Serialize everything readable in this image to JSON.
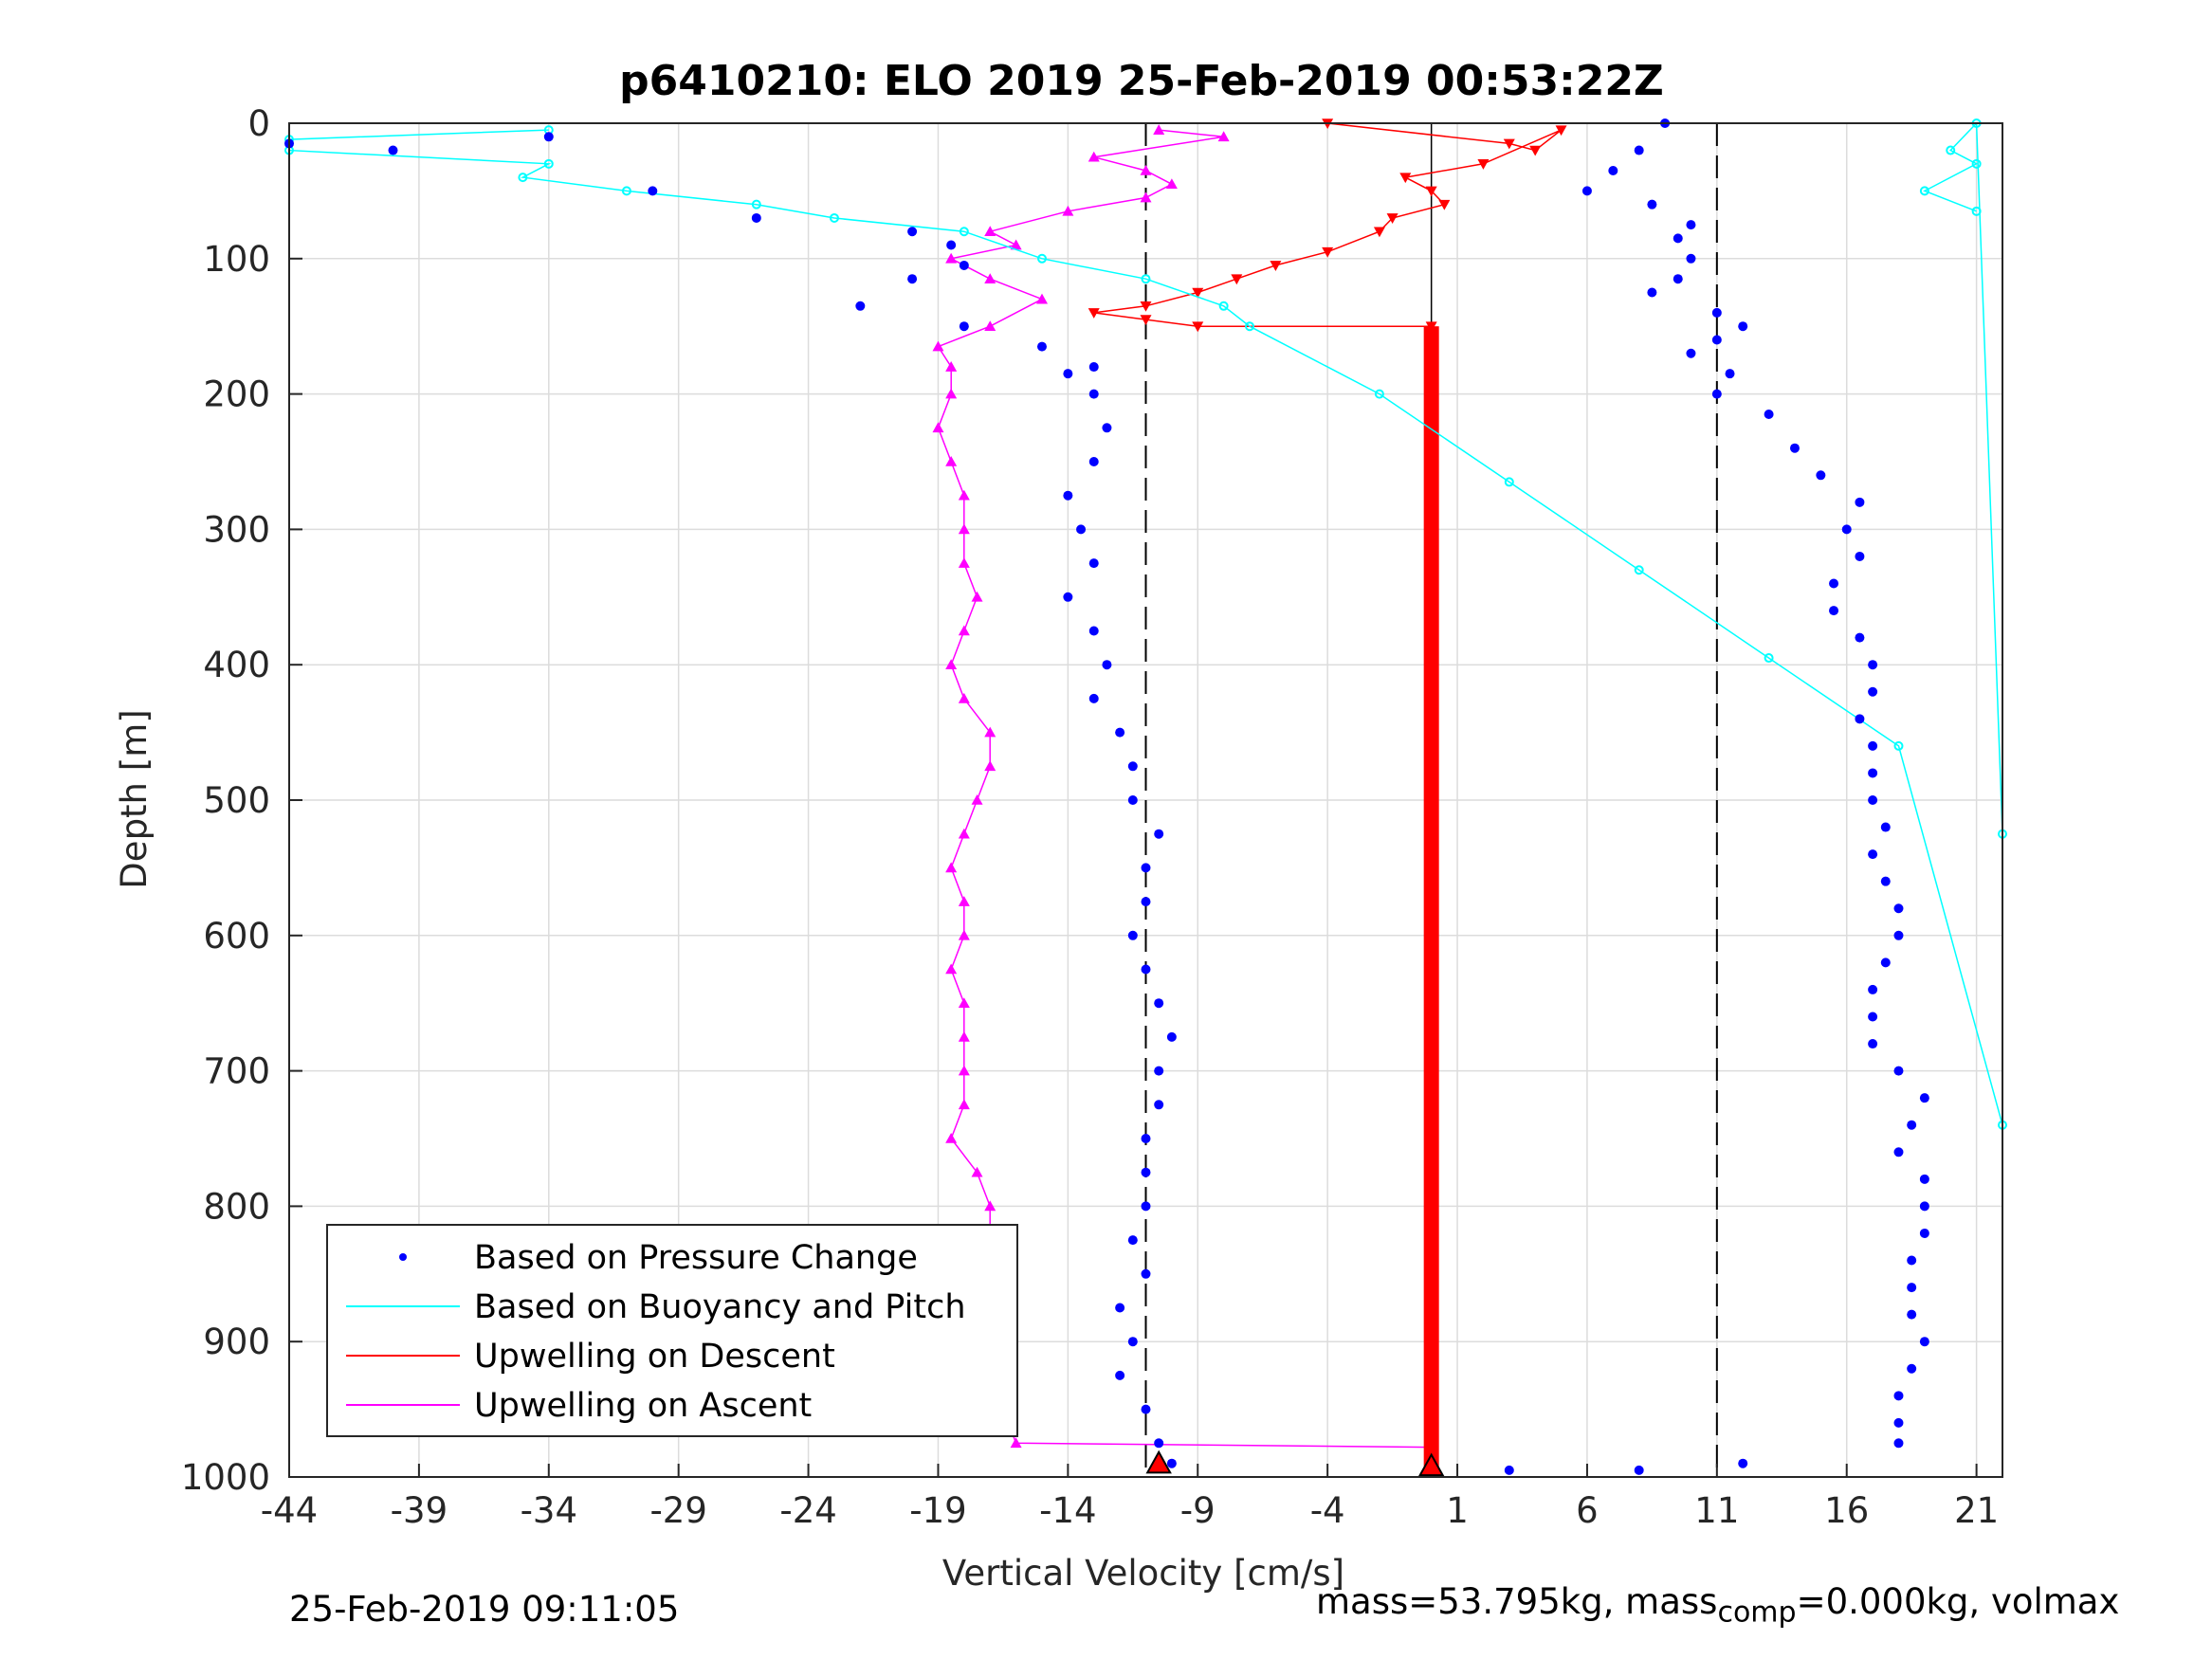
{
  "chart_data": {
    "type": "scatter",
    "title": "p6410210: ELO 2019 25-Feb-2019 00:53:22Z",
    "xlabel": "Vertical Velocity [cm/s]",
    "ylabel": "Depth [m]",
    "xlim": [
      -44,
      22
    ],
    "ylim": [
      0,
      1000
    ],
    "y_reversed": true,
    "grid": true,
    "xticks": [
      -44,
      -39,
      -34,
      -29,
      -24,
      -19,
      -14,
      -9,
      -4,
      1,
      6,
      11,
      16,
      21
    ],
    "yticks": [
      0,
      100,
      200,
      300,
      400,
      500,
      600,
      700,
      800,
      900,
      1000
    ],
    "legend": {
      "location": "bottom-left",
      "entries": [
        "Based on Pressure Change",
        "Based on Buoyancy and Pitch",
        "Upwelling on Descent",
        "Upwelling on Ascent"
      ]
    },
    "reference_lines": {
      "dashed_x": [
        -11,
        11
      ],
      "solid_x": 0
    },
    "series": [
      {
        "name": "Based on Pressure Change",
        "color": "#0000ff",
        "marker": "dot",
        "descent": [
          [
            -34,
            10
          ],
          [
            -40,
            20
          ],
          [
            -44,
            15
          ],
          [
            -30,
            50
          ],
          [
            -26,
            70
          ],
          [
            -20,
            80
          ],
          [
            -18.5,
            90
          ],
          [
            -18,
            105
          ],
          [
            -20,
            115
          ],
          [
            -22,
            135
          ],
          [
            -18,
            150
          ],
          [
            -15,
            165
          ],
          [
            -13,
            180
          ],
          [
            -14,
            185
          ],
          [
            -13,
            200
          ],
          [
            -12.5,
            225
          ],
          [
            -13,
            250
          ],
          [
            -14,
            275
          ],
          [
            -13.5,
            300
          ],
          [
            -13,
            325
          ],
          [
            -14,
            350
          ],
          [
            -13,
            375
          ],
          [
            -12.5,
            400
          ],
          [
            -13,
            425
          ],
          [
            -12,
            450
          ],
          [
            -11.5,
            475
          ],
          [
            -11.5,
            500
          ],
          [
            -10.5,
            525
          ],
          [
            -11,
            550
          ],
          [
            -11,
            575
          ],
          [
            -11.5,
            600
          ],
          [
            -11,
            625
          ],
          [
            -10.5,
            650
          ],
          [
            -10,
            675
          ],
          [
            -10.5,
            700
          ],
          [
            -10.5,
            725
          ],
          [
            -11,
            750
          ],
          [
            -11,
            775
          ],
          [
            -11,
            800
          ],
          [
            -11.5,
            825
          ],
          [
            -11,
            850
          ],
          [
            -12,
            875
          ],
          [
            -11.5,
            900
          ],
          [
            -12,
            925
          ],
          [
            -11,
            950
          ],
          [
            -10.5,
            975
          ],
          [
            -10,
            990
          ]
        ],
        "ascent": [
          [
            9,
            0
          ],
          [
            8,
            20
          ],
          [
            7,
            35
          ],
          [
            6,
            50
          ],
          [
            8.5,
            60
          ],
          [
            10,
            75
          ],
          [
            9.5,
            85
          ],
          [
            10,
            100
          ],
          [
            9.5,
            115
          ],
          [
            8.5,
            125
          ],
          [
            11,
            140
          ],
          [
            12,
            150
          ],
          [
            11,
            160
          ],
          [
            10,
            170
          ],
          [
            11.5,
            185
          ],
          [
            11,
            200
          ],
          [
            13,
            215
          ],
          [
            14,
            240
          ],
          [
            15,
            260
          ],
          [
            16.5,
            280
          ],
          [
            16,
            300
          ],
          [
            16.5,
            320
          ],
          [
            15.5,
            340
          ],
          [
            15.5,
            360
          ],
          [
            16.5,
            380
          ],
          [
            17,
            400
          ],
          [
            17,
            420
          ],
          [
            16.5,
            440
          ],
          [
            17,
            460
          ],
          [
            17,
            480
          ],
          [
            17,
            500
          ],
          [
            17.5,
            520
          ],
          [
            17,
            540
          ],
          [
            17.5,
            560
          ],
          [
            18,
            580
          ],
          [
            18,
            600
          ],
          [
            17.5,
            620
          ],
          [
            17,
            640
          ],
          [
            17,
            660
          ],
          [
            17,
            680
          ],
          [
            18,
            700
          ],
          [
            19,
            720
          ],
          [
            18.5,
            740
          ],
          [
            18,
            760
          ],
          [
            19,
            780
          ],
          [
            19,
            800
          ],
          [
            19,
            820
          ],
          [
            18.5,
            840
          ],
          [
            18.5,
            860
          ],
          [
            18.5,
            880
          ],
          [
            19,
            900
          ],
          [
            18.5,
            920
          ],
          [
            18,
            940
          ],
          [
            18,
            960
          ],
          [
            18,
            975
          ],
          [
            12,
            990
          ],
          [
            8,
            995
          ],
          [
            3,
            995
          ]
        ]
      },
      {
        "name": "Based on Buoyancy and Pitch",
        "color": "#00ffff",
        "marker": "line",
        "points": [
          [
            -34,
            5
          ],
          [
            -44,
            12
          ],
          [
            -44,
            20
          ],
          [
            -34,
            30
          ],
          [
            -35,
            40
          ],
          [
            -31,
            50
          ],
          [
            -26,
            60
          ],
          [
            -23,
            70
          ],
          [
            -18,
            80
          ],
          [
            -15,
            100
          ],
          [
            -11,
            115
          ],
          [
            -8,
            135
          ],
          [
            -7,
            150
          ],
          [
            -2,
            200
          ],
          [
            3,
            265
          ],
          [
            8,
            330
          ],
          [
            13,
            395
          ],
          [
            18,
            460
          ],
          [
            22,
            740
          ],
          [
            22,
            525
          ],
          [
            21,
            0
          ],
          [
            20,
            20
          ],
          [
            21,
            30
          ],
          [
            19,
            50
          ],
          [
            21,
            65
          ]
        ]
      },
      {
        "name": "Upwelling on Descent",
        "color": "#ff0000",
        "marker": "triangle-down",
        "points": [
          [
            -4,
            0
          ],
          [
            3,
            15
          ],
          [
            4,
            20
          ],
          [
            5,
            5
          ],
          [
            2,
            30
          ],
          [
            -1,
            40
          ],
          [
            0,
            50
          ],
          [
            0.5,
            60
          ],
          [
            -1.5,
            70
          ],
          [
            -2,
            80
          ],
          [
            -4,
            95
          ],
          [
            -6,
            105
          ],
          [
            -7.5,
            115
          ],
          [
            -9,
            125
          ],
          [
            -11,
            135
          ],
          [
            -13,
            140
          ],
          [
            -11,
            145
          ],
          [
            -9,
            150
          ],
          [
            0,
            150
          ]
        ]
      },
      {
        "name": "Upwelling on Ascent",
        "color": "#ff00ff",
        "marker": "triangle-up",
        "points": [
          [
            -10.5,
            5
          ],
          [
            -8,
            10
          ],
          [
            -13,
            25
          ],
          [
            -11,
            35
          ],
          [
            -10,
            45
          ],
          [
            -11,
            55
          ],
          [
            -14,
            65
          ],
          [
            -17,
            80
          ],
          [
            -16,
            90
          ],
          [
            -18.5,
            100
          ],
          [
            -17,
            115
          ],
          [
            -15,
            130
          ],
          [
            -17,
            150
          ],
          [
            -19,
            165
          ],
          [
            -18.5,
            180
          ],
          [
            -18.5,
            200
          ],
          [
            -19,
            225
          ],
          [
            -18.5,
            250
          ],
          [
            -18,
            275
          ],
          [
            -18,
            300
          ],
          [
            -18,
            325
          ],
          [
            -17.5,
            350
          ],
          [
            -18,
            375
          ],
          [
            -18.5,
            400
          ],
          [
            -18,
            425
          ],
          [
            -17,
            450
          ],
          [
            -17,
            475
          ],
          [
            -17.5,
            500
          ],
          [
            -18,
            525
          ],
          [
            -18.5,
            550
          ],
          [
            -18,
            575
          ],
          [
            -18,
            600
          ],
          [
            -18.5,
            625
          ],
          [
            -18,
            650
          ],
          [
            -18,
            675
          ],
          [
            -18,
            700
          ],
          [
            -18,
            725
          ],
          [
            -18.5,
            750
          ],
          [
            -17.5,
            775
          ],
          [
            -17,
            800
          ],
          [
            -17,
            825
          ],
          [
            -17.5,
            850
          ],
          [
            -17,
            875
          ],
          [
            -17,
            900
          ],
          [
            -17,
            925
          ],
          [
            -16.5,
            950
          ],
          [
            -16,
            975
          ],
          [
            0,
            978
          ]
        ]
      }
    ],
    "zero_upwelling_bar": {
      "x": 0,
      "depth_from": 150,
      "depth_to": 1000,
      "color": "#ff0000"
    }
  },
  "footer": {
    "timestamp": "25-Feb-2019 09:11:05",
    "mass_text_a": "mass=53.795kg, mass",
    "mass_sub": "comp",
    "mass_text_b": "=0.000kg, volmax"
  }
}
